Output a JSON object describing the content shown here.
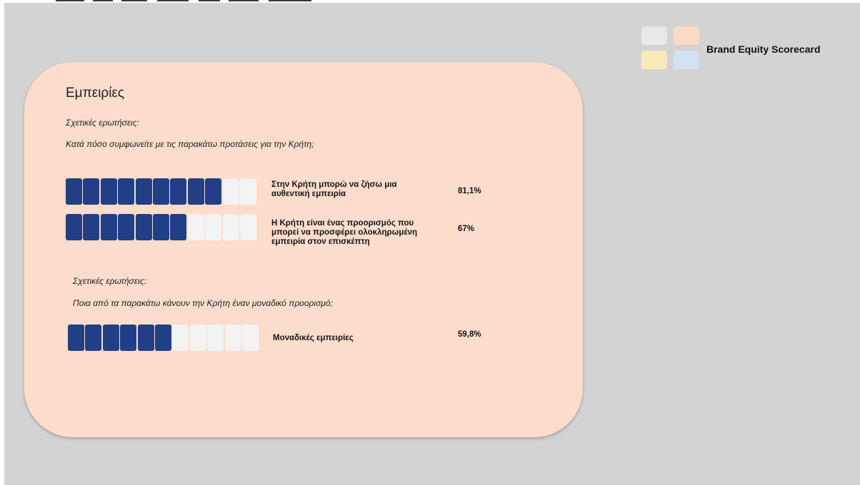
{
  "colors": {
    "accent": "#213f86",
    "card_bg": "#fcddcb",
    "slide_bg": "#d3d3d3",
    "bar_empty": "#f3f3f3",
    "legend_squares": [
      "#e8e8e8",
      "#fcd9c4",
      "#fbeab9",
      "#d3e2f3"
    ]
  },
  "header": {
    "title": "Brand Equity Scorecard"
  },
  "card": {
    "heading": "Εμπειρίες",
    "sections": [
      {
        "label": "Σχετικές ερωτήσεις:",
        "question": "Κατά πόσο συμφωνείτε με τις παρακάτω προτάσεις για την Κρήτη;",
        "items": [
          {
            "statement": "Στην Κρήτη μπορώ να ζήσω μια αυθεντική εμπειρία",
            "percent": "81,1%",
            "filled": 9,
            "total": 11
          },
          {
            "statement": "Η Κρήτη είναι ένας προορισμός που μπορεί να προσφέρει ολοκληρωμένη εμπειρία στον επισκέπτη",
            "percent": "67%",
            "filled": 7,
            "total": 11
          }
        ]
      },
      {
        "label": "Σχετικές ερωτήσεις:",
        "question": "Ποια από τα παρακάτω κάνουν την Κρήτη έναν μοναδικό προορισμό;",
        "items": [
          {
            "statement": "Μοναδικές εμπειρίες",
            "percent": "59,8%",
            "filled": 6,
            "total": 11
          }
        ]
      }
    ]
  }
}
